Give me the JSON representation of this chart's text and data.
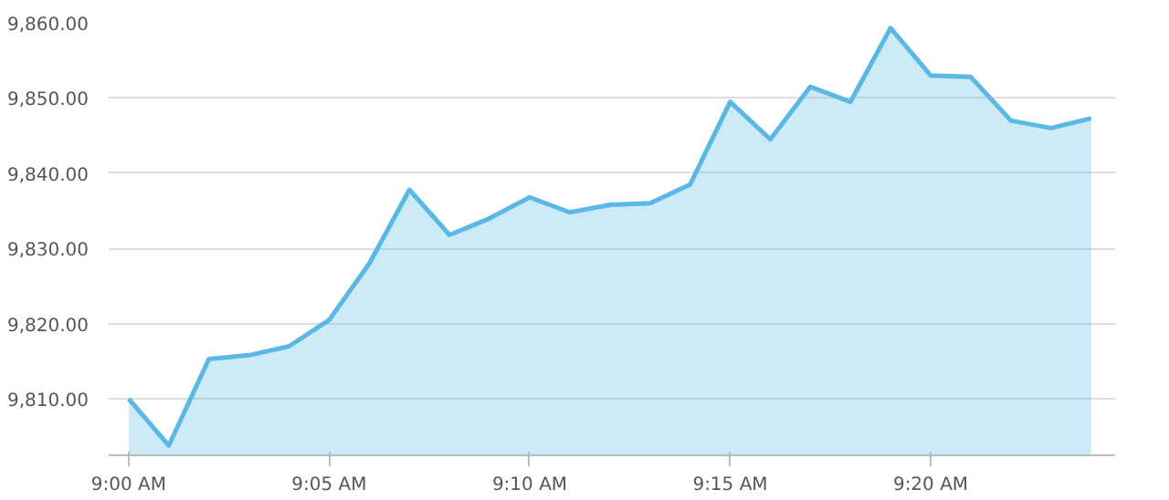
{
  "chart_data": {
    "type": "area",
    "x": [
      9.0,
      9.016667,
      9.033333,
      9.05,
      9.066667,
      9.083333,
      9.1,
      9.116667,
      9.133333,
      9.15,
      9.166667,
      9.183333,
      9.2,
      9.216667,
      9.233333,
      9.25,
      9.266667,
      9.283333,
      9.3,
      9.316667,
      9.333333,
      9.35,
      9.366667,
      9.383333,
      9.4
    ],
    "series": [
      {
        "color": "#5bb8e6",
        "values": [
          9810.0,
          9803.8,
          9815.3,
          9815.8,
          9817.0,
          9820.5,
          9828.0,
          9837.8,
          9831.8,
          9834.0,
          9836.8,
          9834.8,
          9835.8,
          9836.0,
          9838.5,
          9849.5,
          9844.5,
          9851.5,
          9849.5,
          9859.3,
          9853.0,
          9852.8,
          9847.0,
          9846.0,
          9847.3
        ]
      }
    ],
    "xlim": [
      8.991667,
      9.41
    ],
    "ylim": [
      9802.5,
      9860
    ],
    "xticks": [
      {
        "value": 9.0,
        "label": "9:00 AM"
      },
      {
        "value": 9.083333,
        "label": "9:05 AM"
      },
      {
        "value": 9.166667,
        "label": "9:10 AM"
      },
      {
        "value": 9.25,
        "label": "9:15 AM"
      },
      {
        "value": 9.333333,
        "label": "9:20 AM"
      }
    ],
    "yticks": [
      {
        "value": 9810,
        "label": "9,810.00"
      },
      {
        "value": 9820,
        "label": "9,820.00"
      },
      {
        "value": 9830,
        "label": "9,830.00"
      },
      {
        "value": 9840,
        "label": "9,840.00"
      },
      {
        "value": 9850,
        "label": "9,850.00"
      },
      {
        "value": 9860,
        "label": "9,860.00"
      }
    ],
    "grid": "y",
    "marker": "none",
    "line_style": "solid"
  }
}
